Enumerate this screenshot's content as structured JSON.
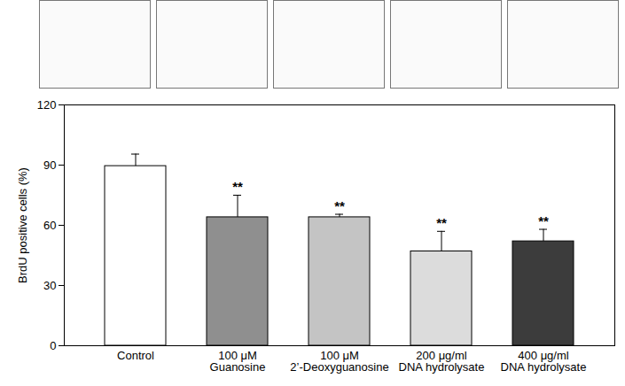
{
  "chart_data": {
    "type": "bar",
    "y_label": "BrdU positive cells (%)",
    "categories": [
      "Control",
      "100 μM\nGuanosine",
      "100 μM\n2’-Deoxyguanosine",
      "200 μg/ml\nDNA hydrolysate",
      "400 μg/ml\nDNA hydrolysate"
    ],
    "values": [
      89.5,
      64,
      64,
      47,
      52
    ],
    "error": [
      6,
      11,
      1.5,
      10,
      6
    ],
    "annotations": [
      null,
      "**",
      "**",
      "**",
      "**"
    ],
    "colors": [
      "#ffffff",
      "#8f8f8f",
      "#c4c4c4",
      "#dcdcdc",
      "#3c3c3c"
    ],
    "ylim": [
      0,
      120
    ],
    "yticks": [
      0,
      30,
      60,
      90,
      120
    ],
    "grid": false
  }
}
